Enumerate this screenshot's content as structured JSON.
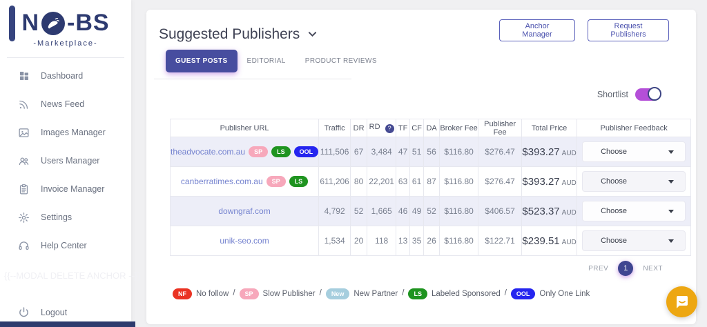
{
  "brand": {
    "name": "NO-BS",
    "name_left": "N",
    "name_right": "-BS",
    "tagline": "-Marketplace-"
  },
  "sidebar": {
    "items": [
      {
        "icon": "dashboard-icon",
        "label": "Dashboard"
      },
      {
        "icon": "news-feed-icon",
        "label": "News Feed"
      },
      {
        "icon": "images-manager-icon",
        "label": "Images Manager"
      },
      {
        "icon": "users-manager-icon",
        "label": "Users Manager"
      },
      {
        "icon": "invoice-manager-icon",
        "label": "Invoice Manager"
      },
      {
        "icon": "settings-icon",
        "label": "Settings"
      },
      {
        "icon": "help-center-icon",
        "label": "Help Center"
      }
    ],
    "debug_text": "{{--MODAL DELETE ANCHOR --}}",
    "logout_label": "Logout"
  },
  "header": {
    "title": "Suggested Publishers",
    "anchor_manager_label": "Anchor Manager",
    "request_publishers_label": "Request Publishers"
  },
  "tabs": [
    {
      "label": "GUEST POSTS",
      "active": true
    },
    {
      "label": "EDITORIAL",
      "active": false
    },
    {
      "label": "PRODUCT REVIEWS",
      "active": false
    }
  ],
  "shortlist": {
    "label": "Shortlist",
    "on": true
  },
  "table": {
    "columns": [
      {
        "label": "Publisher URL"
      },
      {
        "label": "Traffic"
      },
      {
        "label": "DR"
      },
      {
        "label": "RD",
        "help": true
      },
      {
        "label": "TF"
      },
      {
        "label": "CF"
      },
      {
        "label": "DA"
      },
      {
        "label": "Broker Fee"
      },
      {
        "label": "Publisher Fee"
      },
      {
        "label": "Total Price"
      },
      {
        "label": "Publisher Feedback"
      }
    ],
    "rows": [
      {
        "url": "theadvocate.com.au",
        "badges": [
          "SP",
          "LS",
          "OOL"
        ],
        "traffic": "111,506",
        "dr": "67",
        "rd": "3,484",
        "tf": "47",
        "cf": "51",
        "da": "56",
        "broker_fee": "$116.80",
        "publisher_fee": "$276.47",
        "total_price": "$393.27",
        "currency": "AUD",
        "feedback": "Choose",
        "shaded": true
      },
      {
        "url": "canberratimes.com.au",
        "badges": [
          "SP",
          "LS"
        ],
        "traffic": "611,206",
        "dr": "80",
        "rd": "22,201",
        "tf": "63",
        "cf": "61",
        "da": "87",
        "broker_fee": "$116.80",
        "publisher_fee": "$276.47",
        "total_price": "$393.27",
        "currency": "AUD",
        "feedback": "Choose",
        "shaded": false
      },
      {
        "url": "downgraf.com",
        "badges": [],
        "traffic": "4,792",
        "dr": "52",
        "rd": "1,665",
        "tf": "46",
        "cf": "49",
        "da": "52",
        "broker_fee": "$116.80",
        "publisher_fee": "$406.57",
        "total_price": "$523.37",
        "currency": "AUD",
        "feedback": "Choose",
        "shaded": true
      },
      {
        "url": "unik-seo.com",
        "badges": [],
        "traffic": "1,534",
        "dr": "20",
        "rd": "118",
        "tf": "13",
        "cf": "35",
        "da": "26",
        "broker_fee": "$116.80",
        "publisher_fee": "$122.71",
        "total_price": "$239.51",
        "currency": "AUD",
        "feedback": "Choose",
        "shaded": false
      }
    ]
  },
  "pagination": {
    "prev": "PREV",
    "page": "1",
    "next": "NEXT"
  },
  "legend": [
    {
      "badge": "NF",
      "label": "No follow"
    },
    {
      "badge": "SP",
      "label": "Slow Publisher"
    },
    {
      "badge": "New",
      "label": "New Partner"
    },
    {
      "badge": "LS",
      "label": "Labeled Sponsored"
    },
    {
      "badge": "OOL",
      "label": "Only One Link"
    }
  ],
  "badge_colors": {
    "NF": "#ea3323",
    "SP": "#f7a8bb",
    "New": "#a6cede",
    "LS": "#1f9420",
    "OOL": "#2525ef"
  },
  "colors": {
    "accent": "#474d9f",
    "toggle_on": "#b44fd8",
    "brand_navy": "#2d3a70",
    "chat": "#eda712",
    "row_shaded": "#edeef8"
  }
}
